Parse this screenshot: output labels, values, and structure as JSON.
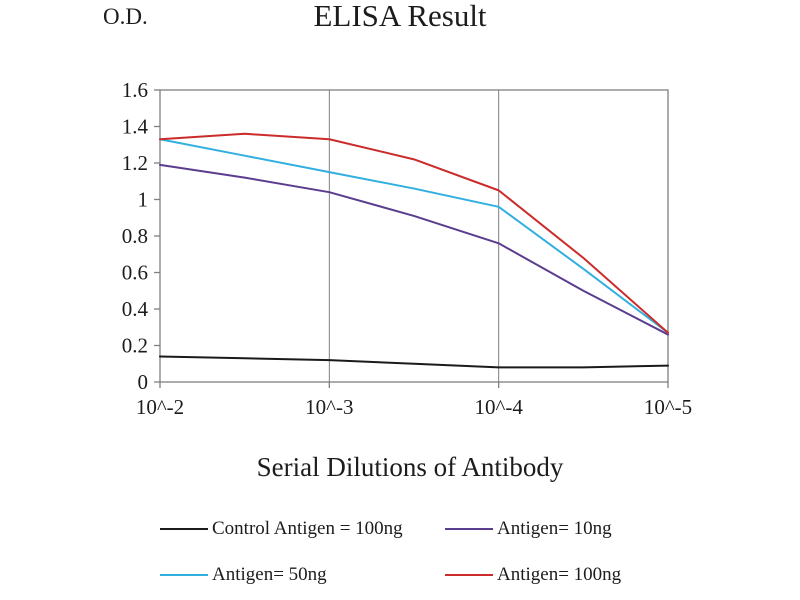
{
  "chart_data": {
    "type": "line",
    "title": "ELISA Result",
    "ylabel": "O.D.",
    "xlabel": "Serial Dilutions of Antibody",
    "xlim": [
      2,
      5
    ],
    "ylim": [
      0,
      1.6
    ],
    "x_tick_values": [
      2,
      3,
      4,
      5
    ],
    "x_tick_labels": [
      "10^-2",
      "10^-3",
      "10^-4",
      "10^-5"
    ],
    "y_tick_values": [
      0,
      0.2,
      0.4,
      0.6,
      0.8,
      1,
      1.2,
      1.4,
      1.6
    ],
    "y_tick_labels": [
      "0",
      "0.2",
      "0.4",
      "0.6",
      "0.8",
      "1",
      "1.2",
      "1.4",
      "1.6"
    ],
    "grid_vertical_at": [
      3,
      4
    ],
    "grid_horizontal": false,
    "legend_position": "bottom",
    "x_sample_points": [
      2,
      2.5,
      3,
      3.5,
      4,
      4.5,
      5
    ],
    "series": [
      {
        "name": "Control Antigen = 100ng",
        "color": "#1a1a1a",
        "values": [
          0.14,
          0.13,
          0.12,
          0.1,
          0.08,
          0.08,
          0.09
        ]
      },
      {
        "name": "Antigen= 10ng",
        "color": "#5b3d8f",
        "values": [
          1.19,
          1.12,
          1.04,
          0.91,
          0.76,
          0.5,
          0.26
        ]
      },
      {
        "name": "Antigen= 50ng",
        "color": "#31b0e0",
        "values": [
          1.33,
          1.24,
          1.15,
          1.06,
          0.96,
          0.62,
          0.27
        ]
      },
      {
        "name": "Antigen= 100ng",
        "color": "#cc2b2b",
        "values": [
          1.33,
          1.36,
          1.33,
          1.22,
          1.05,
          0.68,
          0.27
        ]
      }
    ]
  },
  "legend": {
    "items": [
      {
        "label": "Control Antigen = 100ng",
        "color": "#1a1a1a"
      },
      {
        "label": "Antigen= 10ng",
        "color": "#5b3d8f"
      },
      {
        "label": "Antigen= 50ng",
        "color": "#31b0e0"
      },
      {
        "label": "Antigen= 100ng",
        "color": "#cc2b2b"
      }
    ]
  },
  "style": {
    "axis_color": "#7f7f7f",
    "text_color": "#1c1c1c"
  }
}
